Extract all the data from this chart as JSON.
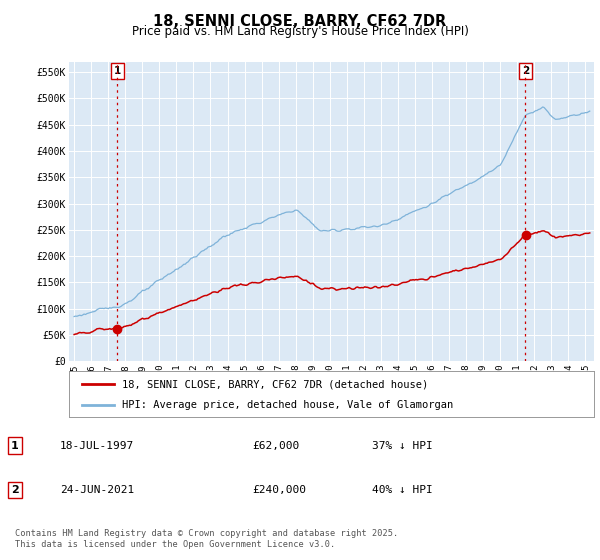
{
  "title": "18, SENNI CLOSE, BARRY, CF62 7DR",
  "subtitle": "Price paid vs. HM Land Registry's House Price Index (HPI)",
  "ylim": [
    0,
    570000
  ],
  "xlim_start": 1994.7,
  "xlim_end": 2025.5,
  "fig_bg_color": "#ffffff",
  "plot_bg_color": "#dce9f5",
  "grid_color": "#ffffff",
  "hpi_color": "#7fb3d9",
  "price_color": "#cc0000",
  "marker_color": "#cc0000",
  "vline_color": "#cc0000",
  "purchase1_year": 1997.54,
  "purchase1_price": 62000,
  "purchase1_label": "18-JUL-1997",
  "purchase1_amount": "£62,000",
  "purchase1_hpi": "37% ↓ HPI",
  "purchase2_year": 2021.48,
  "purchase2_price": 240000,
  "purchase2_label": "24-JUN-2021",
  "purchase2_amount": "£240,000",
  "purchase2_hpi": "40% ↓ HPI",
  "legend_line1": "18, SENNI CLOSE, BARRY, CF62 7DR (detached house)",
  "legend_line2": "HPI: Average price, detached house, Vale of Glamorgan",
  "footnote": "Contains HM Land Registry data © Crown copyright and database right 2025.\nThis data is licensed under the Open Government Licence v3.0.",
  "ytick_labels": [
    "£0",
    "£50K",
    "£100K",
    "£150K",
    "£200K",
    "£250K",
    "£300K",
    "£350K",
    "£400K",
    "£450K",
    "£500K",
    "£550K"
  ],
  "ytick_values": [
    0,
    50000,
    100000,
    150000,
    200000,
    250000,
    300000,
    350000,
    400000,
    450000,
    500000,
    550000
  ],
  "xtick_years": [
    1995,
    1996,
    1997,
    1998,
    1999,
    2000,
    2001,
    2002,
    2003,
    2004,
    2005,
    2006,
    2007,
    2008,
    2009,
    2010,
    2011,
    2012,
    2013,
    2014,
    2015,
    2016,
    2017,
    2018,
    2019,
    2020,
    2021,
    2022,
    2023,
    2024,
    2025
  ]
}
